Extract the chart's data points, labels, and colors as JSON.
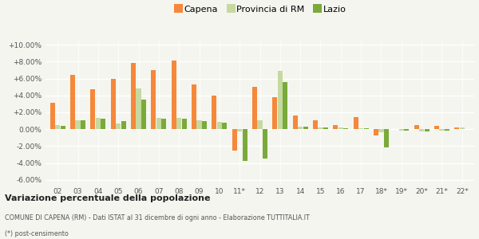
{
  "categories": [
    "02",
    "03",
    "04",
    "05",
    "06",
    "07",
    "08",
    "09",
    "10",
    "11*",
    "12",
    "13",
    "14",
    "15",
    "16",
    "17",
    "18*",
    "19*",
    "20*",
    "21*",
    "22*"
  ],
  "capena": [
    3.1,
    6.4,
    4.7,
    6.0,
    7.9,
    7.0,
    8.1,
    5.3,
    4.0,
    -2.5,
    5.0,
    3.8,
    1.6,
    1.1,
    0.5,
    1.4,
    -0.7,
    0.0,
    0.5,
    0.4,
    0.2
  ],
  "provincia_rm": [
    0.5,
    1.1,
    1.3,
    0.7,
    4.8,
    1.3,
    1.3,
    1.1,
    0.9,
    -0.3,
    1.1,
    6.9,
    0.3,
    0.2,
    0.2,
    0.1,
    -0.4,
    -0.2,
    -0.3,
    -0.2,
    0.2
  ],
  "lazio": [
    0.4,
    1.1,
    1.2,
    1.0,
    3.5,
    1.2,
    1.2,
    1.0,
    0.8,
    -3.8,
    -3.5,
    5.6,
    0.3,
    0.2,
    0.1,
    0.1,
    -2.2,
    -0.2,
    -0.3,
    -0.2,
    0.0
  ],
  "color_capena": "#f5883a",
  "color_provincia": "#c5d9a0",
  "color_lazio": "#7aaa3a",
  "title": "Variazione percentuale della popolazione",
  "subtitle": "COMUNE DI CAPENA (RM) - Dati ISTAT al 31 dicembre di ogni anno - Elaborazione TUTTITALIA.IT",
  "footnote": "(*) post-censimento",
  "legend_labels": [
    "Capena",
    "Provincia di RM",
    "Lazio"
  ],
  "ylim": [
    -6.5,
    10.5
  ],
  "yticks": [
    -6,
    -4,
    -2,
    0,
    2,
    4,
    6,
    8,
    10
  ],
  "bg_color": "#f5f5f0",
  "grid_color": "#e0e0d8"
}
